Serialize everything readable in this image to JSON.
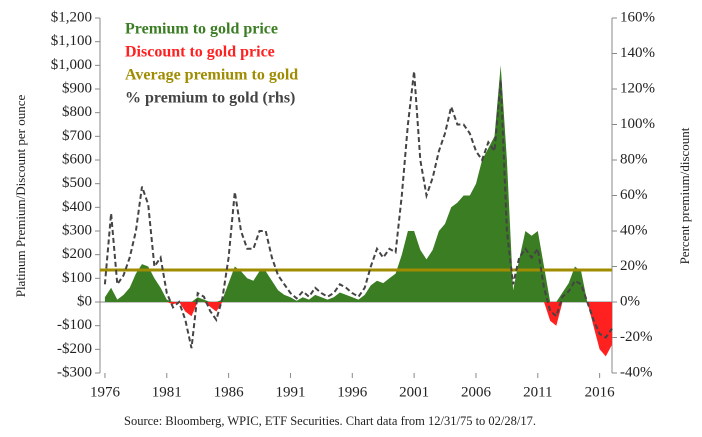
{
  "chart_data": {
    "type": "area",
    "y_label": "Platinum Premium/Discount per ounce",
    "y2_label": "Percent premium/discount",
    "source": "Source: Bloomberg, WPIC, ETF Securities. Chart data from  12/31/75 to 02/28/17.",
    "legend": "upper left",
    "x": [
      1976,
      1976.5,
      1977,
      1977.5,
      1978,
      1978.5,
      1979,
      1979.5,
      1980,
      1980.5,
      1981,
      1981.5,
      1982,
      1982.5,
      1983,
      1983.5,
      1984,
      1984.5,
      1985,
      1985.5,
      1986,
      1986.5,
      1987,
      1987.5,
      1988,
      1988.5,
      1989,
      1989.5,
      1990,
      1990.5,
      1991,
      1991.5,
      1992,
      1992.5,
      1993,
      1993.5,
      1994,
      1994.5,
      1995,
      1995.5,
      1996,
      1996.5,
      1997,
      1997.5,
      1998,
      1998.5,
      1999,
      1999.5,
      2000,
      2000.5,
      2001,
      2001.5,
      2002,
      2002.5,
      2003,
      2003.5,
      2004,
      2004.5,
      2005,
      2005.5,
      2006,
      2006.5,
      2007,
      2007.5,
      2008,
      2008.5,
      2009,
      2009.5,
      2010,
      2010.5,
      2011,
      2011.5,
      2012,
      2012.5,
      2013,
      2013.5,
      2014,
      2014.5,
      2015,
      2015.5,
      2016,
      2016.5,
      2017
    ],
    "series": [
      {
        "name": "Premium to gold price",
        "color": "#3a7d23",
        "values": [
          20,
          60,
          10,
          30,
          60,
          120,
          160,
          150,
          100,
          60,
          10,
          0,
          0,
          0,
          0,
          20,
          10,
          0,
          0,
          10,
          80,
          150,
          130,
          100,
          90,
          130,
          130,
          90,
          50,
          30,
          20,
          5,
          20,
          10,
          30,
          20,
          10,
          20,
          40,
          30,
          20,
          10,
          30,
          70,
          90,
          80,
          100,
          120,
          200,
          300,
          300,
          220,
          180,
          220,
          300,
          330,
          400,
          420,
          450,
          450,
          500,
          600,
          650,
          700,
          1000,
          600,
          50,
          180,
          300,
          280,
          300,
          150,
          0,
          0,
          40,
          80,
          150,
          130,
          0,
          0,
          0,
          0,
          0
        ]
      },
      {
        "name": "Discount to gold price",
        "color": "#ff2020",
        "values": [
          0,
          0,
          0,
          0,
          0,
          0,
          0,
          0,
          0,
          0,
          0,
          -10,
          0,
          -40,
          -60,
          0,
          0,
          -20,
          -40,
          0,
          0,
          0,
          0,
          0,
          0,
          0,
          0,
          0,
          0,
          0,
          0,
          0,
          0,
          0,
          0,
          0,
          0,
          0,
          0,
          0,
          0,
          0,
          0,
          0,
          0,
          0,
          0,
          0,
          0,
          0,
          0,
          0,
          0,
          0,
          0,
          0,
          0,
          0,
          0,
          0,
          0,
          0,
          0,
          0,
          0,
          0,
          0,
          0,
          0,
          0,
          0,
          0,
          -80,
          -100,
          0,
          0,
          0,
          0,
          0,
          -100,
          -200,
          -230,
          -180
        ]
      },
      {
        "name": "Average premium to gold",
        "color": "#a08c00",
        "value": 135
      },
      {
        "name": "% premium to gold (rhs)",
        "color": "#444444",
        "axis": "y2",
        "dashed": true,
        "values": [
          10,
          50,
          10,
          15,
          25,
          40,
          65,
          55,
          20,
          25,
          5,
          -3,
          0,
          -10,
          -26,
          5,
          3,
          -5,
          -10,
          2,
          25,
          62,
          40,
          30,
          30,
          40,
          40,
          25,
          15,
          10,
          5,
          2,
          6,
          3,
          8,
          5,
          3,
          5,
          10,
          8,
          5,
          3,
          8,
          20,
          30,
          25,
          30,
          28,
          60,
          100,
          130,
          80,
          60,
          70,
          85,
          95,
          110,
          100,
          100,
          95,
          85,
          80,
          90,
          85,
          125,
          40,
          10,
          25,
          30,
          25,
          30,
          8,
          -5,
          -8,
          3,
          6,
          12,
          10,
          0,
          -10,
          -18,
          -20,
          -15
        ]
      }
    ],
    "xlim": [
      1975.6,
      2017
    ],
    "xticks": [
      1976,
      1981,
      1986,
      1991,
      1996,
      2001,
      2006,
      2011,
      2016
    ],
    "ylim": [
      -300,
      1200
    ],
    "yticks": [
      {
        "value": -300,
        "label": "-$300"
      },
      {
        "value": -200,
        "label": "-$200"
      },
      {
        "value": -100,
        "label": "-$100"
      },
      {
        "value": 0,
        "label": "$0"
      },
      {
        "value": 100,
        "label": "$100"
      },
      {
        "value": 200,
        "label": "$200"
      },
      {
        "value": 300,
        "label": "$300"
      },
      {
        "value": 400,
        "label": "$400"
      },
      {
        "value": 500,
        "label": "$500"
      },
      {
        "value": 600,
        "label": "$600"
      },
      {
        "value": 700,
        "label": "$700"
      },
      {
        "value": 800,
        "label": "$800"
      },
      {
        "value": 900,
        "label": "$900"
      },
      {
        "value": 1000,
        "label": "$1,000"
      },
      {
        "value": 1100,
        "label": "$1,100"
      },
      {
        "value": 1200,
        "label": "$1,200"
      }
    ],
    "y2lim": [
      -40,
      160
    ],
    "y2ticks": [
      {
        "value": -40,
        "label": "-40%"
      },
      {
        "value": -20,
        "label": "-20%"
      },
      {
        "value": 0,
        "label": "0%"
      },
      {
        "value": 20,
        "label": "20%"
      },
      {
        "value": 40,
        "label": "40%"
      },
      {
        "value": 60,
        "label": "60%"
      },
      {
        "value": 80,
        "label": "80%"
      },
      {
        "value": 100,
        "label": "100%"
      },
      {
        "value": 120,
        "label": "120%"
      },
      {
        "value": 140,
        "label": "140%"
      },
      {
        "value": 160,
        "label": "160%"
      }
    ]
  }
}
